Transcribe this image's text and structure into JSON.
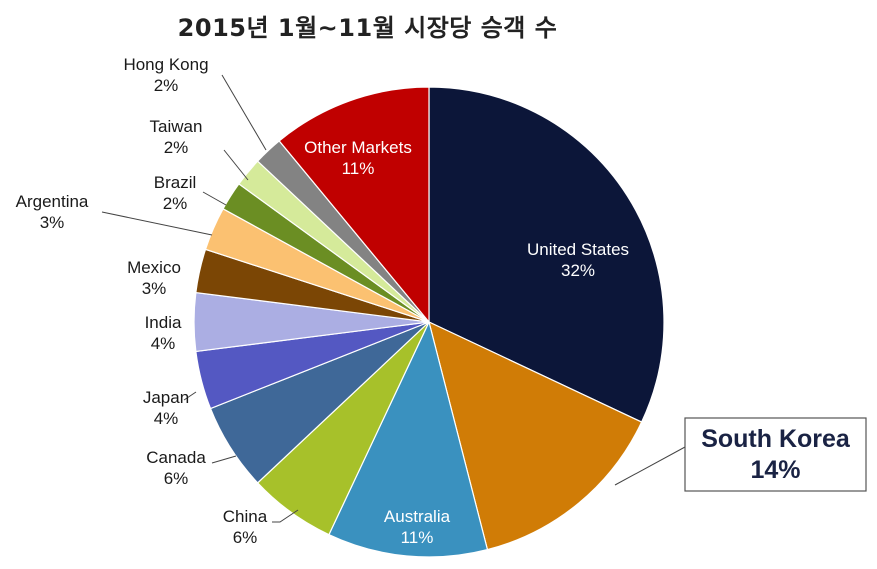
{
  "chart_data": {
    "type": "pie",
    "title": "2015년 1월~11월 시장당 승객 수",
    "unit": "%",
    "slices": [
      {
        "label": "United States",
        "value": 32,
        "value_label": "32%",
        "color": "#0c1639",
        "label_pos": "inside"
      },
      {
        "label": "South Korea",
        "value": 14,
        "value_label": "14%",
        "color": "#d07c06",
        "label_pos": "callout-box",
        "highlight": true
      },
      {
        "label": "Australia",
        "value": 11,
        "value_label": "11%",
        "color": "#3a91bf",
        "label_pos": "inside"
      },
      {
        "label": "China",
        "value": 6,
        "value_label": "6%",
        "color": "#a7c12a",
        "label_pos": "outside"
      },
      {
        "label": "Canada",
        "value": 6,
        "value_label": "6%",
        "color": "#3f6898",
        "label_pos": "outside"
      },
      {
        "label": "Japan",
        "value": 4,
        "value_label": "4%",
        "color": "#5458c2",
        "label_pos": "outside"
      },
      {
        "label": "India",
        "value": 4,
        "value_label": "4%",
        "color": "#abaee3",
        "label_pos": "outside"
      },
      {
        "label": "Mexico",
        "value": 3,
        "value_label": "3%",
        "color": "#7b4605",
        "label_pos": "outside"
      },
      {
        "label": "Argentina",
        "value": 3,
        "value_label": "3%",
        "color": "#fbc171",
        "label_pos": "outside"
      },
      {
        "label": "Brazil",
        "value": 2,
        "value_label": "2%",
        "color": "#6b8e23",
        "label_pos": "outside"
      },
      {
        "label": "Taiwan",
        "value": 2,
        "value_label": "2%",
        "color": "#d5ea9a",
        "label_pos": "outside"
      },
      {
        "label": "Hong Kong",
        "value": 2,
        "value_label": "2%",
        "color": "#838383",
        "label_pos": "outside"
      },
      {
        "label": "Other Markets",
        "value": 11,
        "value_label": "11%",
        "color": "#c00000",
        "label_pos": "inside"
      }
    ],
    "legend": "none"
  }
}
